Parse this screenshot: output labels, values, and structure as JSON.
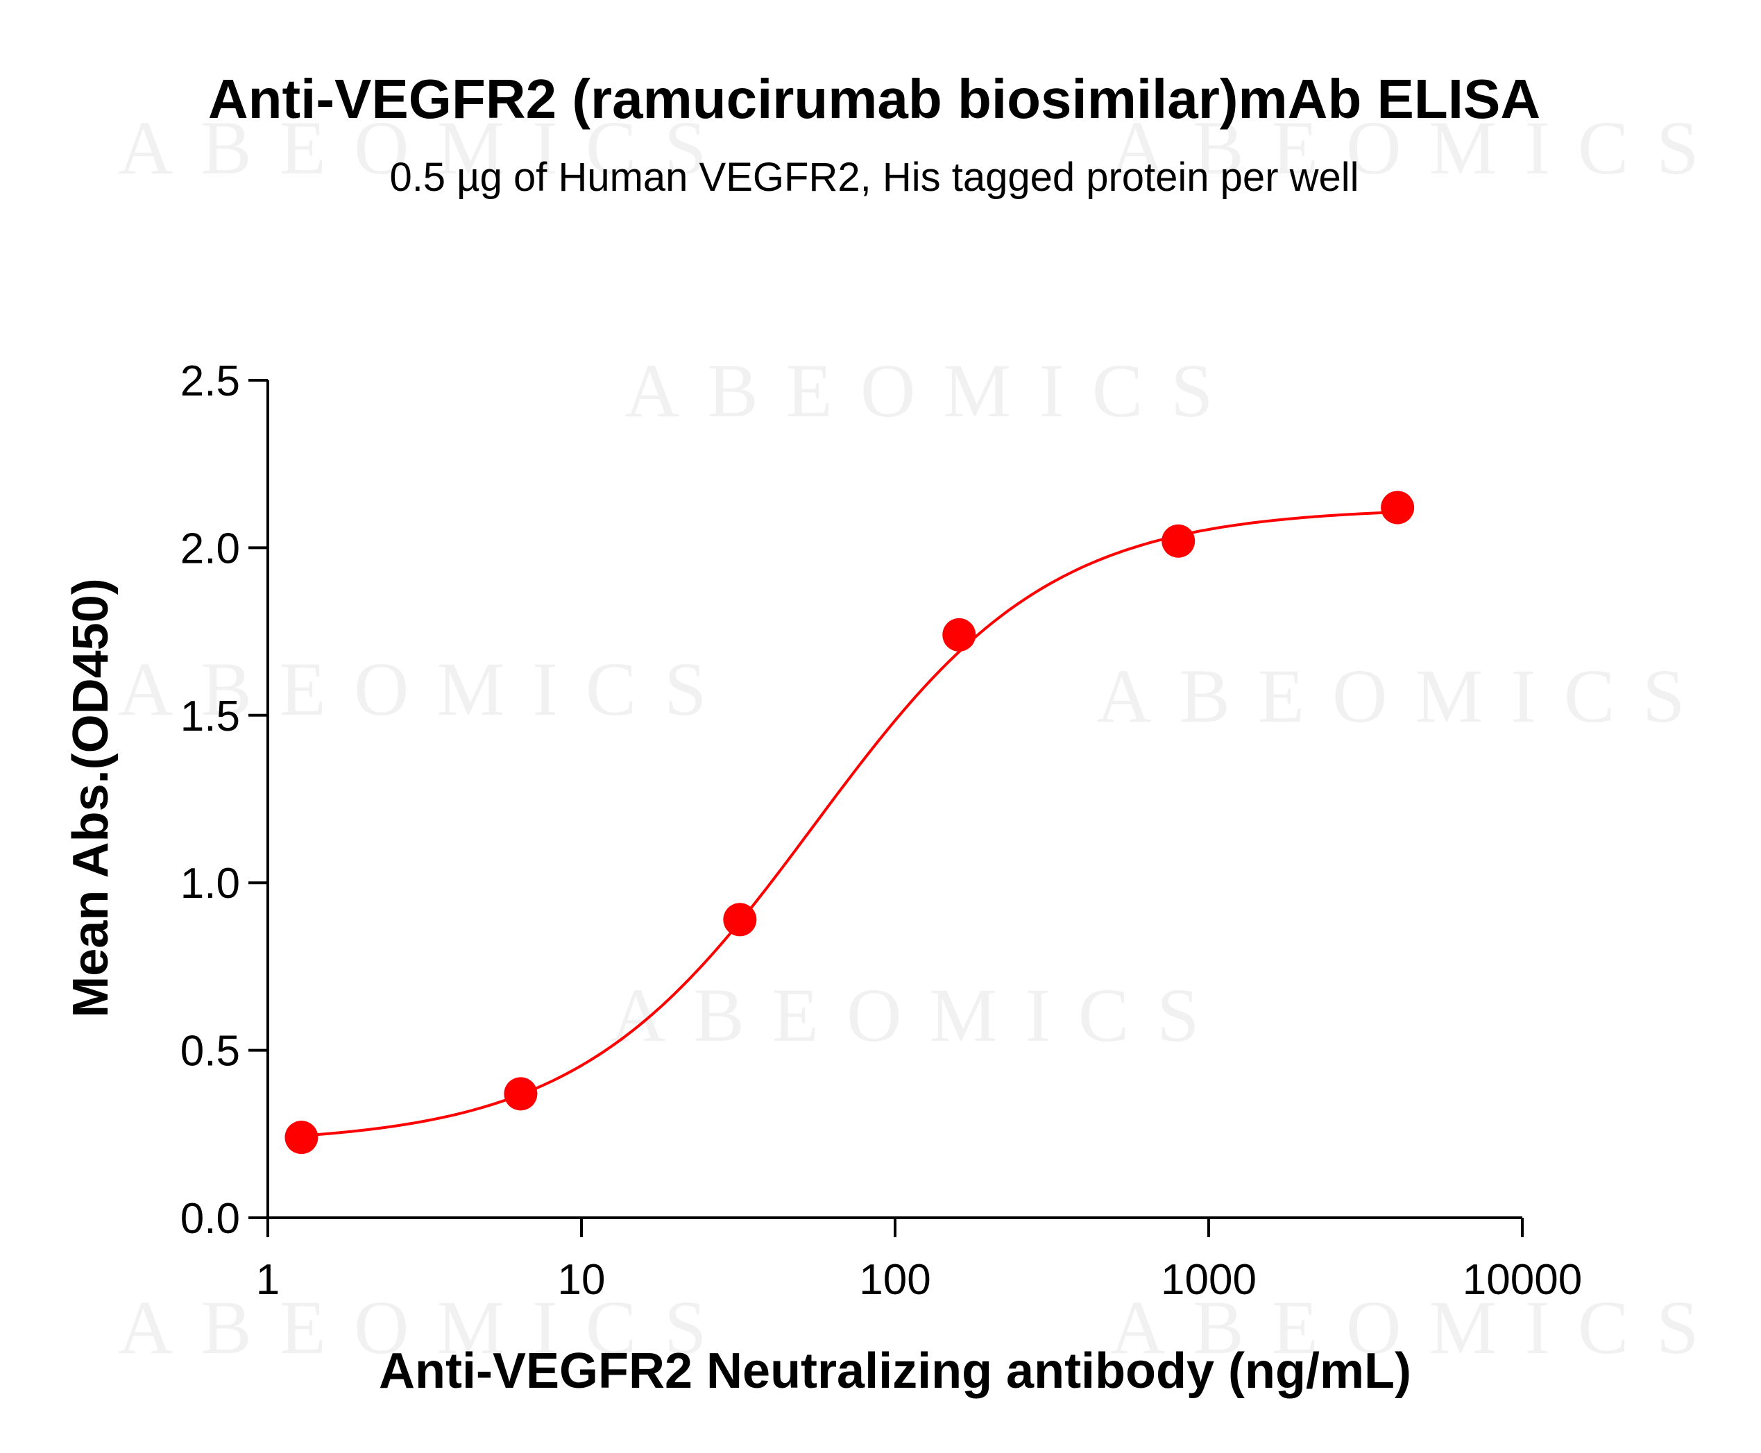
{
  "chart_data": {
    "type": "scatter",
    "title": "Anti-VEGFR2 (ramucirumab biosimilar)mAb ELISA",
    "subtitle": "0.5 µg of Human VEGFR2, His tagged protein per well",
    "xlabel": "Anti-VEGFR2 Neutralizing antibody  (ng/mL)",
    "ylabel": "Mean Abs.(OD450)",
    "x_scale": "log",
    "xlim": [
      1,
      10000
    ],
    "ylim": [
      0,
      2.5
    ],
    "x_ticks": [
      "1",
      "10",
      "100",
      "1000",
      "10000"
    ],
    "y_ticks": [
      "0.0",
      "0.5",
      "1.0",
      "1.5",
      "2.0",
      "2.5"
    ],
    "grid": false,
    "series": [
      {
        "color": "#ff0000",
        "x": [
          1.28,
          6.4,
          32,
          160,
          800,
          4000
        ],
        "y": [
          0.24,
          0.37,
          0.89,
          1.74,
          2.02,
          2.12
        ],
        "fit_curve": "4PL sigmoid"
      }
    ],
    "watermark": "ABEOMICS"
  }
}
